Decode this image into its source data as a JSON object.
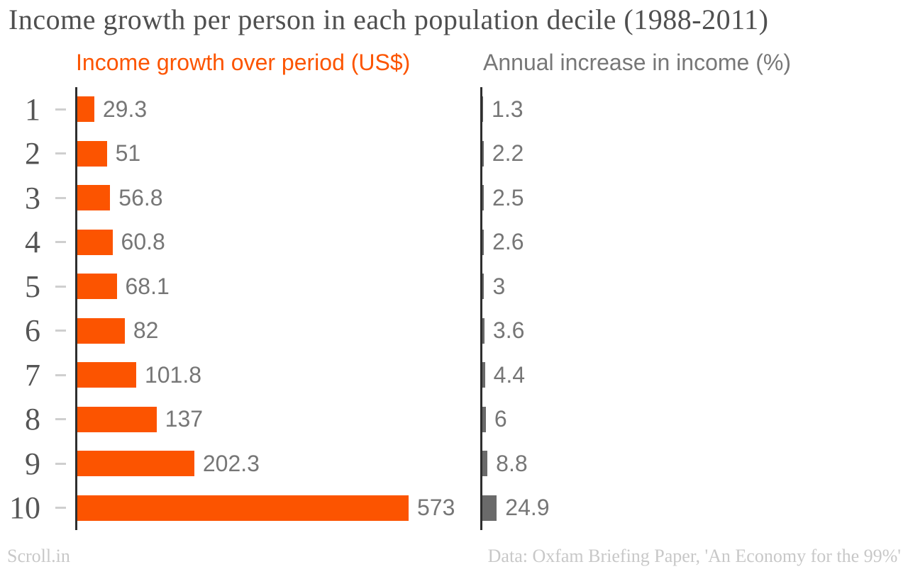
{
  "title": "Income growth per person in each population decile (1988-2011)",
  "panels": {
    "left_label": "Income growth over period (US$)",
    "right_label": "Annual increase in income (%)"
  },
  "footer": {
    "source_left": "Scroll.in",
    "source_right": "Data: Oxfam Briefing Paper, 'An Economy for the 99%'"
  },
  "colors": {
    "accent_orange": "#fc5400",
    "bar_gray": "#6a6a6a",
    "axis": "#2e2e2e",
    "tick": "#cfcfcf",
    "row_label": "#555555",
    "value_label": "#767676",
    "subtitle_gray": "#777777",
    "title_text": "#4f4f4f",
    "footer_text": "#c8c8c8"
  },
  "chart_data": {
    "type": "bar",
    "orientation": "horizontal",
    "title": "Income growth per person in each population decile (1988-2011)",
    "categories": [
      "1",
      "2",
      "3",
      "4",
      "5",
      "6",
      "7",
      "8",
      "9",
      "10"
    ],
    "series": [
      {
        "name": "Income growth over period (US$)",
        "color": "#fc5400",
        "values": [
          29.3,
          51,
          56.8,
          60.8,
          68.1,
          82,
          101.8,
          137,
          202.3,
          573
        ]
      },
      {
        "name": "Annual increase in income (%)",
        "color": "#6a6a6a",
        "values": [
          1.3,
          2.2,
          2.5,
          2.6,
          3,
          3.6,
          4.4,
          6,
          8.8,
          24.9
        ]
      }
    ],
    "value_labels_shown": true,
    "grid": false,
    "legend_position": "panel headers above each column",
    "axis_note": "two side-by-side panels sharing one linear scale; bars grow rightward from each panel's baseline"
  }
}
